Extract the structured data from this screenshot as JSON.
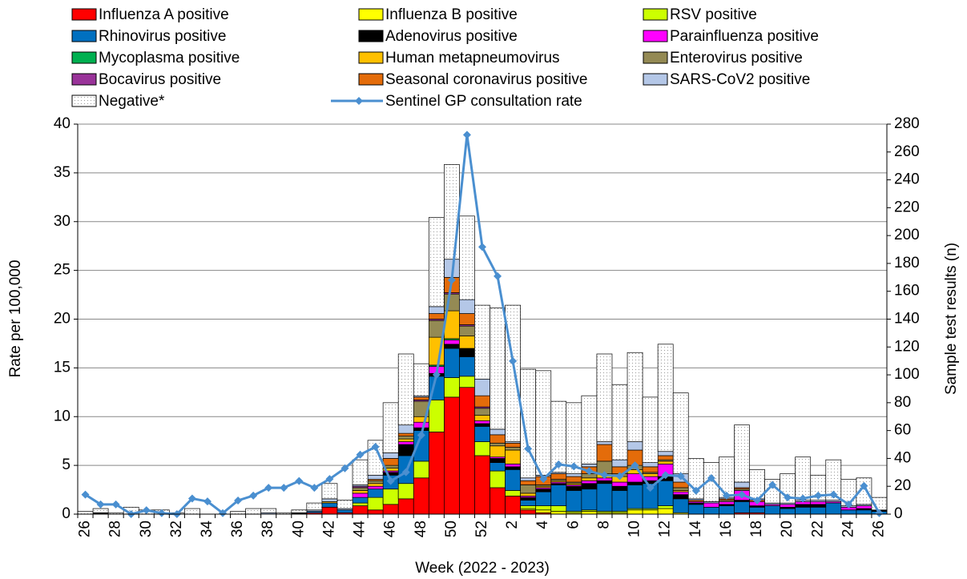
{
  "chart_data": {
    "type": "bar",
    "stacked": true,
    "x_label": "Week (2022 - 2023)",
    "y_label": "Rate per 100,000",
    "y2_label": "Sample test results (n)",
    "categories": [
      "26",
      null,
      "28",
      null,
      "30",
      null,
      "32",
      null,
      "34",
      null,
      "36",
      null,
      "38",
      null,
      "40",
      null,
      "42",
      null,
      "44",
      null,
      "46",
      null,
      "48",
      null,
      "50",
      null,
      "52",
      null,
      "2",
      null,
      "4",
      null,
      "6",
      null,
      "8",
      null,
      "10",
      null,
      "12",
      null,
      "14",
      null,
      "16",
      null,
      "18",
      null,
      "20",
      null,
      "22",
      null,
      "24",
      null,
      "26"
    ],
    "ylim": [
      0,
      40
    ],
    "yticks": [
      0,
      5,
      10,
      15,
      20,
      25,
      30,
      35,
      40
    ],
    "y2lim": [
      0,
      280
    ],
    "y2ticks": [
      0,
      20,
      40,
      60,
      80,
      100,
      120,
      140,
      160,
      180,
      200,
      220,
      240,
      260,
      280
    ],
    "grid": true,
    "series": [
      {
        "name": "Influenza A positive",
        "color": "#ff0000",
        "axis": "y2",
        "values": [
          0,
          0,
          0,
          0,
          0,
          0,
          0,
          0,
          0,
          0,
          0,
          0,
          0,
          0,
          0,
          1,
          5,
          1,
          6,
          3,
          7,
          11,
          26,
          59,
          84,
          91,
          42,
          19,
          13,
          3,
          1,
          0,
          0,
          0,
          0,
          0,
          0,
          0,
          0,
          0,
          0,
          0,
          0,
          1,
          1,
          0,
          0,
          0,
          0,
          0,
          0,
          0,
          0
        ]
      },
      {
        "name": "Influenza B positive",
        "color": "#ffff00",
        "axis": "y2",
        "values": [
          0,
          0,
          0,
          0,
          0,
          0,
          0,
          0,
          0,
          0,
          0,
          0,
          0,
          0,
          0,
          0,
          0,
          0,
          0,
          0,
          0,
          0,
          0,
          0,
          0,
          0,
          0,
          0,
          0,
          1,
          2,
          2,
          1,
          2,
          1,
          1,
          3,
          3,
          4,
          1,
          0,
          0,
          0,
          0,
          0,
          0,
          0,
          0,
          0,
          0,
          0,
          0,
          0
        ]
      },
      {
        "name": "RSV positive",
        "color": "#ccff00",
        "axis": "y2",
        "values": [
          0,
          0,
          0,
          0,
          0,
          0,
          0,
          0,
          0,
          0,
          0,
          0,
          0,
          0,
          0,
          0,
          0,
          0,
          2,
          9,
          11,
          11,
          12,
          23,
          14,
          8,
          10,
          12,
          4,
          2,
          3,
          4,
          1,
          1,
          1,
          1,
          1,
          1,
          2,
          0,
          0,
          0,
          0,
          0,
          0,
          0,
          0,
          0,
          0,
          0,
          0,
          0,
          0
        ]
      },
      {
        "name": "Rhinovirus positive",
        "color": "#0070c0",
        "axis": "y2",
        "values": [
          0,
          0,
          0,
          0,
          0,
          0,
          0,
          0,
          0,
          0,
          0,
          0,
          0,
          0,
          0,
          1,
          3,
          2,
          4,
          6,
          10,
          20,
          22,
          17,
          21,
          14,
          11,
          6,
          15,
          4,
          10,
          15,
          15,
          15,
          20,
          15,
          17,
          18,
          18,
          10,
          7,
          5,
          6,
          8,
          4,
          6,
          4,
          5,
          5,
          8,
          3,
          3,
          2
        ]
      },
      {
        "name": "Adenovirus positive",
        "color": "#000000",
        "axis": "y2",
        "values": [
          0,
          1,
          0,
          0,
          0,
          0,
          0,
          0,
          0,
          0,
          0,
          0,
          0,
          0,
          1,
          0,
          0,
          0,
          0,
          0,
          2,
          8,
          2,
          2,
          3,
          6,
          2,
          3,
          2,
          2,
          2,
          1,
          3,
          4,
          2,
          3,
          2,
          2,
          3,
          3,
          1,
          0,
          1,
          1,
          1,
          0,
          1,
          2,
          2,
          0,
          0,
          1,
          1
        ]
      },
      {
        "name": "Parainfluenza positive",
        "color": "#ff00ff",
        "axis": "y2",
        "values": [
          0,
          0,
          0,
          0,
          0,
          0,
          0,
          0,
          0,
          0,
          0,
          0,
          0,
          0,
          0,
          0,
          0,
          0,
          3,
          2,
          1,
          2,
          4,
          5,
          3,
          0,
          2,
          1,
          2,
          1,
          1,
          1,
          1,
          2,
          2,
          3,
          6,
          3,
          9,
          2,
          1,
          3,
          2,
          7,
          3,
          1,
          2,
          2,
          2,
          1,
          2,
          2,
          0
        ]
      },
      {
        "name": "Mycoplasma positive",
        "color": "#00b050",
        "axis": "y2",
        "values": [
          0,
          0,
          0,
          0,
          0,
          0,
          0,
          0,
          0,
          0,
          0,
          0,
          0,
          0,
          0,
          0,
          0,
          0,
          0,
          0,
          0,
          0,
          0,
          1,
          1,
          0,
          0,
          0,
          0,
          0,
          0,
          0,
          0,
          0,
          0,
          0,
          0,
          0,
          0,
          0,
          0,
          0,
          0,
          0,
          0,
          0,
          0,
          0,
          0,
          0,
          0,
          0,
          0
        ]
      },
      {
        "name": "Human metapneumovirus",
        "color": "#ffc000",
        "axis": "y2",
        "values": [
          0,
          0,
          0,
          0,
          0,
          0,
          0,
          0,
          0,
          0,
          0,
          0,
          0,
          0,
          0,
          0,
          1,
          0,
          2,
          2,
          2,
          2,
          4,
          20,
          20,
          9,
          4,
          8,
          10,
          2,
          1,
          1,
          1,
          2,
          3,
          4,
          3,
          2,
          2,
          1,
          0,
          0,
          0,
          0,
          0,
          0,
          0,
          0,
          0,
          0,
          0,
          0,
          0
        ]
      },
      {
        "name": "Enterovirus positive",
        "color": "#948a54",
        "axis": "y2",
        "values": [
          0,
          0,
          0,
          0,
          0,
          0,
          0,
          0,
          0,
          0,
          0,
          0,
          0,
          0,
          0,
          0,
          0,
          0,
          2,
          2,
          2,
          2,
          11,
          12,
          12,
          7,
          5,
          2,
          2,
          6,
          1,
          1,
          1,
          3,
          9,
          2,
          3,
          1,
          1,
          2,
          0,
          0,
          1,
          1,
          0,
          0,
          0,
          0,
          0,
          0,
          0,
          0,
          0
        ]
      },
      {
        "name": "Bocavirus positive",
        "color": "#993399",
        "axis": "y2",
        "values": [
          0,
          0,
          0,
          0,
          0,
          0,
          0,
          0,
          0,
          0,
          0,
          0,
          0,
          0,
          0,
          0,
          0,
          0,
          1,
          0,
          0,
          0,
          1,
          1,
          1,
          1,
          1,
          0,
          0,
          0,
          0,
          0,
          0,
          0,
          0,
          0,
          0,
          0,
          0,
          0,
          0,
          0,
          0,
          0,
          0,
          0,
          0,
          0,
          0,
          0,
          0,
          0,
          0
        ]
      },
      {
        "name": "Seasonal coronavirus positive",
        "color": "#e46c0a",
        "axis": "y2",
        "values": [
          0,
          0,
          0,
          0,
          0,
          0,
          0,
          0,
          0,
          0,
          0,
          0,
          0,
          0,
          0,
          0,
          0,
          0,
          0,
          1,
          5,
          2,
          2,
          4,
          11,
          8,
          8,
          6,
          3,
          3,
          6,
          4,
          4,
          5,
          12,
          5,
          11,
          4,
          3,
          4,
          1,
          0,
          1,
          1,
          1,
          0,
          0,
          0,
          0,
          0,
          0,
          0,
          0
        ]
      },
      {
        "name": "SARS-CoV2 positive",
        "color": "#b4c7e7",
        "axis": "y2",
        "values": [
          0,
          0,
          0,
          0,
          0,
          0,
          0,
          0,
          0,
          0,
          0,
          0,
          1,
          0,
          0,
          1,
          2,
          1,
          1,
          3,
          4,
          6,
          1,
          5,
          13,
          10,
          12,
          4,
          1,
          2,
          1,
          1,
          2,
          2,
          2,
          5,
          6,
          3,
          3,
          6,
          1,
          1,
          1,
          4,
          1,
          1,
          1,
          1,
          1,
          1,
          1,
          1,
          0
        ]
      },
      {
        "name": "Negative*",
        "color": "#ffffff",
        "pattern": "dots",
        "axis": "y2",
        "values": [
          2,
          3,
          1,
          5,
          3,
          3,
          1,
          4,
          0,
          0,
          2,
          4,
          3,
          1,
          2,
          5,
          11,
          6,
          18,
          25,
          36,
          51,
          23,
          64,
          68,
          60,
          53,
          87,
          98,
          78,
          75,
          51,
          51,
          49,
          63,
          54,
          64,
          47,
          77,
          58,
          29,
          28,
          29,
          41,
          21,
          17,
          21,
          31,
          18,
          29,
          19,
          19,
          9
        ]
      },
      {
        "name": "Sentinel GP consultation rate",
        "color": "#4a8fd0",
        "type": "line",
        "marker": "diamond",
        "values": [
          2.0,
          1.0,
          1.0,
          0.0,
          0.4,
          0.1,
          0.0,
          1.6,
          1.3,
          0.1,
          1.4,
          1.9,
          2.7,
          2.7,
          3.4,
          2.7,
          3.6,
          4.7,
          6.1,
          6.9,
          3.4,
          4.3,
          8.1,
          14.3,
          24.0,
          38.9,
          27.4,
          24.4,
          15.7,
          6.7,
          3.6,
          5.1,
          4.9,
          4.4,
          4.0,
          3.9,
          5.0,
          2.7,
          4.0,
          3.9,
          2.4,
          3.7,
          1.9,
          2.0,
          1.4,
          3.0,
          1.7,
          1.6,
          1.9,
          2.0,
          1.0,
          2.9,
          0.1
        ]
      }
    ]
  }
}
